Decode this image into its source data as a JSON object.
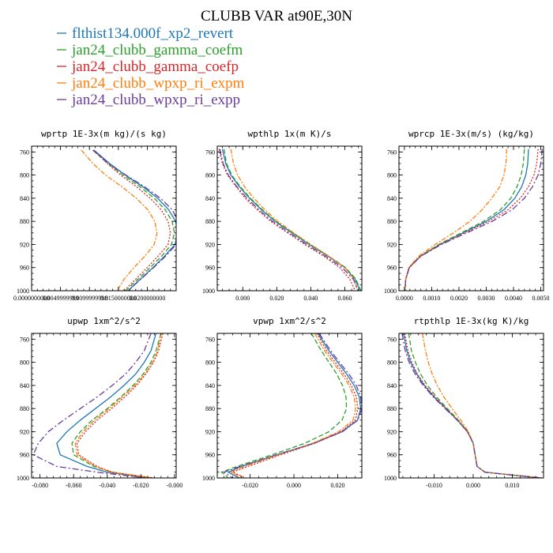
{
  "figure": {
    "title": "CLUBB VAR at90E,30N"
  },
  "legend": [
    {
      "label": "flthist134.000f_xp2_revert",
      "color": "#1f77b4",
      "dash": ""
    },
    {
      "label": "jan24_clubb_gamma_coefm",
      "color": "#2ca02c",
      "dash": "6,3"
    },
    {
      "label": "jan24_clubb_gamma_coefp",
      "color": "#d62728",
      "dash": "2,2"
    },
    {
      "label": "jan24_clubb_wpxp_ri_expm",
      "color": "#ff7f0e",
      "dash": "6,2,2,2"
    },
    {
      "label": "jan24_clubb_wpxp_ri_expp",
      "color": "#6a3d9a",
      "dash": "8,3,2,3"
    }
  ],
  "chart_data": [
    {
      "type": "line",
      "title": "wprtp  1E-3x(m kg)/(s kg)",
      "xlim": [
        0.0,
        0.025
      ],
      "ylim": [
        1000,
        750
      ],
      "xticks": [
        0.0,
        0.005,
        0.01,
        0.015,
        0.02
      ],
      "xtick_labels": [
        "0.0000000000",
        "0.0049999999",
        "0.0099999998",
        "0.0150000000",
        "0.0200000000"
      ],
      "yticks": [
        760,
        800,
        840,
        880,
        920,
        960,
        1000
      ],
      "ytick_labels": [
        "760",
        "800",
        "840",
        "880",
        "920",
        "960",
        "1000"
      ],
      "y": [
        757,
        780,
        800,
        820,
        840,
        860,
        880,
        900,
        920,
        940,
        960,
        980,
        1000
      ],
      "series": [
        {
          "name": "flthist134.000f_xp2_revert",
          "values": [
            0.0108,
            0.0135,
            0.0162,
            0.0192,
            0.0218,
            0.0237,
            0.0249,
            0.0253,
            0.0248,
            0.023,
            0.021,
            0.0188,
            0.0167
          ]
        },
        {
          "name": "jan24_clubb_gamma_coefm",
          "values": [
            0.0106,
            0.0132,
            0.0158,
            0.0187,
            0.0212,
            0.0231,
            0.0243,
            0.0247,
            0.0242,
            0.0225,
            0.0205,
            0.0184,
            0.0163
          ]
        },
        {
          "name": "jan24_clubb_gamma_coefp",
          "values": [
            0.0107,
            0.0131,
            0.0154,
            0.0181,
            0.0205,
            0.0224,
            0.0236,
            0.024,
            0.0236,
            0.0219,
            0.02,
            0.018,
            0.016
          ]
        },
        {
          "name": "jan24_clubb_wpxp_ri_expm",
          "values": [
            0.0086,
            0.0106,
            0.0128,
            0.0156,
            0.0181,
            0.0201,
            0.0213,
            0.0217,
            0.0212,
            0.0196,
            0.0177,
            0.016,
            0.0148
          ]
        },
        {
          "name": "jan24_clubb_wpxp_ri_expp",
          "values": [
            0.0106,
            0.0133,
            0.0163,
            0.0195,
            0.0223,
            0.0243,
            0.0254,
            0.0256,
            0.025,
            0.0232,
            0.0211,
            0.0189,
            0.0167
          ]
        }
      ]
    },
    {
      "type": "line",
      "title": "wpthlp  1x(m K)/s",
      "xlim": [
        -0.015,
        0.07
      ],
      "ylim": [
        1000,
        750
      ],
      "xticks": [
        0.0,
        0.02,
        0.04,
        0.06
      ],
      "xtick_labels": [
        "0.000",
        "0.020",
        "0.040",
        "0.060"
      ],
      "yticks": [
        760,
        800,
        840,
        880,
        920,
        960,
        1000
      ],
      "ytick_labels": [
        "760",
        "800",
        "840",
        "880",
        "920",
        "960",
        "1000"
      ],
      "y": [
        755,
        780,
        800,
        820,
        840,
        860,
        880,
        900,
        920,
        940,
        960,
        980,
        1000
      ],
      "series": [
        {
          "name": "flthist134.000f_xp2_revert",
          "values": [
            -0.012,
            -0.01,
            -0.007,
            -0.002,
            0.004,
            0.011,
            0.019,
            0.029,
            0.039,
            0.05,
            0.06,
            0.066,
            0.069
          ]
        },
        {
          "name": "jan24_clubb_gamma_coefm",
          "values": [
            -0.011,
            -0.0095,
            -0.0065,
            -0.0015,
            0.0045,
            0.0115,
            0.0195,
            0.0295,
            0.0395,
            0.0505,
            0.0605,
            0.0665,
            0.0695
          ]
        },
        {
          "name": "jan24_clubb_gamma_coefp",
          "values": [
            -0.014,
            -0.012,
            -0.009,
            -0.004,
            0.0015,
            0.0085,
            0.0165,
            0.0265,
            0.0365,
            0.0475,
            0.057,
            0.063,
            0.066
          ]
        },
        {
          "name": "jan24_clubb_wpxp_ri_expm",
          "values": [
            -0.007,
            -0.0055,
            -0.003,
            0.001,
            0.0065,
            0.013,
            0.0205,
            0.03,
            0.04,
            0.0505,
            0.06,
            0.0655,
            0.0675
          ]
        },
        {
          "name": "jan24_clubb_wpxp_ri_expp",
          "values": [
            -0.0135,
            -0.0115,
            -0.0085,
            -0.0035,
            0.0025,
            0.0095,
            0.0175,
            0.0275,
            0.0375,
            0.0485,
            0.0585,
            0.065,
            0.068
          ]
        }
      ]
    },
    {
      "type": "line",
      "title": "wprcp  1E-3x(m/s) (kg/kg)",
      "xlim": [
        -0.0002,
        0.0051
      ],
      "ylim": [
        1000,
        750
      ],
      "xticks": [
        0.0,
        0.001,
        0.002,
        0.003,
        0.004,
        0.005
      ],
      "xtick_labels": [
        "0.0000",
        "0.0010",
        "0.0020",
        "0.0030",
        "0.0040",
        "0.0050"
      ],
      "yticks": [
        760,
        800,
        840,
        880,
        920,
        960,
        1000
      ],
      "ytick_labels": [
        "760",
        "800",
        "840",
        "880",
        "920",
        "960",
        "1000"
      ],
      "y": [
        755,
        780,
        800,
        820,
        840,
        860,
        880,
        900,
        920,
        940,
        960,
        980,
        1000
      ],
      "series": [
        {
          "name": "flthist134.000f_xp2_revert",
          "values": [
            0.00455,
            0.00452,
            0.00445,
            0.0043,
            0.00405,
            0.00365,
            0.003,
            0.00215,
            0.0013,
            0.0006,
            0.00018,
            5e-05,
            2e-05
          ]
        },
        {
          "name": "jan24_clubb_gamma_coefm",
          "values": [
            0.0044,
            0.00436,
            0.00428,
            0.00413,
            0.0039,
            0.00352,
            0.0029,
            0.00208,
            0.00126,
            0.00058,
            0.00017,
            5e-05,
            2e-05
          ]
        },
        {
          "name": "jan24_clubb_gamma_coefp",
          "values": [
            0.0049,
            0.00485,
            0.00475,
            0.00455,
            0.00425,
            0.0038,
            0.0031,
            0.0022,
            0.00132,
            0.0006,
            0.00018,
            5e-05,
            2e-05
          ]
        },
        {
          "name": "jan24_clubb_wpxp_ri_expm",
          "values": [
            0.00375,
            0.00372,
            0.00365,
            0.0035,
            0.0032,
            0.00285,
            0.0024,
            0.0018,
            0.00113,
            0.00053,
            0.00016,
            5e-05,
            2e-05
          ]
        },
        {
          "name": "jan24_clubb_wpxp_ri_expp",
          "values": [
            0.00505,
            0.005,
            0.0049,
            0.0047,
            0.0044,
            0.00395,
            0.00322,
            0.00228,
            0.00136,
            0.00061,
            0.00018,
            5e-05,
            2e-05
          ]
        }
      ]
    },
    {
      "type": "line",
      "title": "upwp  1xm^2/s^2",
      "xlim": [
        -0.085,
        0.001
      ],
      "ylim": [
        1000,
        750
      ],
      "xticks": [
        -0.08,
        -0.06,
        -0.04,
        -0.02,
        0.0
      ],
      "xtick_labels": [
        "-0.080",
        "-0.060",
        "-0.040",
        "-0.020",
        "-0.000"
      ],
      "yticks": [
        760,
        800,
        840,
        880,
        920,
        960,
        1000
      ],
      "ytick_labels": [
        "760",
        "800",
        "840",
        "880",
        "920",
        "960",
        "1000"
      ],
      "y": [
        750,
        780,
        800,
        820,
        840,
        860,
        880,
        900,
        920,
        940,
        960,
        980,
        990,
        1000
      ],
      "series": [
        {
          "name": "flthist134.000f_xp2_revert",
          "values": [
            -0.011,
            -0.014,
            -0.018,
            -0.023,
            -0.03,
            -0.038,
            -0.047,
            -0.056,
            -0.064,
            -0.07,
            -0.068,
            -0.052,
            -0.04,
            -0.015
          ]
        },
        {
          "name": "jan24_clubb_gamma_coefm",
          "values": [
            -0.008,
            -0.011,
            -0.014,
            -0.0185,
            -0.0245,
            -0.032,
            -0.04,
            -0.049,
            -0.056,
            -0.061,
            -0.06,
            -0.048,
            -0.037,
            -0.014
          ]
        },
        {
          "name": "jan24_clubb_gamma_coefp",
          "values": [
            -0.007,
            -0.0095,
            -0.0125,
            -0.017,
            -0.0225,
            -0.0295,
            -0.0375,
            -0.046,
            -0.053,
            -0.058,
            -0.057,
            -0.046,
            -0.037,
            -0.012
          ]
        },
        {
          "name": "jan24_clubb_wpxp_ri_expm",
          "values": [
            -0.008,
            -0.01,
            -0.013,
            -0.0175,
            -0.0235,
            -0.031,
            -0.039,
            -0.0475,
            -0.0545,
            -0.059,
            -0.058,
            -0.047,
            -0.038,
            -0.013
          ]
        },
        {
          "name": "jan24_clubb_wpxp_ri_expp",
          "values": [
            -0.014,
            -0.018,
            -0.023,
            -0.029,
            -0.037,
            -0.046,
            -0.056,
            -0.066,
            -0.075,
            -0.081,
            -0.084,
            -0.07,
            -0.046,
            -0.017
          ]
        }
      ]
    },
    {
      "type": "line",
      "title": "vpwp  1xm^2/s^2",
      "xlim": [
        -0.035,
        0.031
      ],
      "ylim": [
        1000,
        750
      ],
      "xticks": [
        -0.02,
        0.0,
        0.02
      ],
      "xtick_labels": [
        "-0.020",
        "0.000",
        "0.020"
      ],
      "yticks": [
        760,
        800,
        840,
        880,
        920,
        960,
        1000
      ],
      "ytick_labels": [
        "760",
        "800",
        "840",
        "880",
        "920",
        "960",
        "1000"
      ],
      "y": [
        750,
        780,
        800,
        820,
        840,
        860,
        880,
        900,
        920,
        940,
        960,
        980,
        990,
        1000
      ],
      "series": [
        {
          "name": "flthist134.000f_xp2_revert",
          "values": [
            0.011,
            0.016,
            0.02,
            0.024,
            0.0275,
            0.0298,
            0.0305,
            0.029,
            0.022,
            0.009,
            -0.008,
            -0.024,
            -0.03,
            -0.025
          ]
        },
        {
          "name": "jan24_clubb_gamma_coefm",
          "values": [
            0.008,
            0.0125,
            0.016,
            0.0195,
            0.0222,
            0.0238,
            0.024,
            0.022,
            0.016,
            0.005,
            -0.01,
            -0.026,
            -0.033,
            -0.03
          ]
        },
        {
          "name": "jan24_clubb_gamma_coefp",
          "values": [
            0.0105,
            0.015,
            0.0188,
            0.0228,
            0.0262,
            0.0285,
            0.0292,
            0.028,
            0.0215,
            0.0095,
            -0.006,
            -0.021,
            -0.028,
            -0.022
          ]
        },
        {
          "name": "jan24_clubb_wpxp_ri_expm",
          "values": [
            0.0095,
            0.014,
            0.0178,
            0.0218,
            0.0252,
            0.0275,
            0.0282,
            0.027,
            0.0205,
            0.0085,
            -0.007,
            -0.0225,
            -0.029,
            -0.023
          ]
        },
        {
          "name": "jan24_clubb_wpxp_ri_expp",
          "values": [
            0.0115,
            0.0168,
            0.0208,
            0.025,
            0.0285,
            0.0305,
            0.031,
            0.0292,
            0.0222,
            0.0093,
            -0.008,
            -0.0245,
            -0.032,
            -0.028
          ]
        }
      ]
    },
    {
      "type": "line",
      "title": "rtpthlp  1E-3x(kg K)/kg",
      "xlim": [
        -0.019,
        0.018
      ],
      "ylim": [
        1000,
        750
      ],
      "xticks": [
        -0.01,
        0.0,
        0.01
      ],
      "xtick_labels": [
        "-0.010",
        "0.000",
        "0.010"
      ],
      "yticks": [
        760,
        800,
        840,
        880,
        920,
        960,
        1000
      ],
      "ytick_labels": [
        "760",
        "800",
        "840",
        "880",
        "920",
        "960",
        "1000"
      ],
      "y": [
        750,
        780,
        800,
        820,
        840,
        860,
        880,
        900,
        920,
        940,
        960,
        980,
        990,
        995,
        1000
      ],
      "series": [
        {
          "name": "flthist134.000f_xp2_revert",
          "values": [
            -0.0178,
            -0.017,
            -0.016,
            -0.0145,
            -0.0125,
            -0.01,
            -0.007,
            -0.004,
            -0.0015,
            0.0,
            0.0005,
            0.001,
            0.003,
            0.01,
            0.0175
          ]
        },
        {
          "name": "jan24_clubb_gamma_coefm",
          "values": [
            -0.0165,
            -0.0158,
            -0.0148,
            -0.0135,
            -0.0117,
            -0.0094,
            -0.0066,
            -0.0038,
            -0.0014,
            0.0,
            0.0005,
            0.001,
            0.003,
            0.01,
            0.0175
          ]
        },
        {
          "name": "jan24_clubb_gamma_coefp",
          "values": [
            -0.0175,
            -0.0167,
            -0.0157,
            -0.0143,
            -0.0123,
            -0.0098,
            -0.0069,
            -0.004,
            -0.0015,
            0.0,
            0.0005,
            0.001,
            0.003,
            0.01,
            0.0175
          ]
        },
        {
          "name": "jan24_clubb_wpxp_ri_expm",
          "values": [
            -0.013,
            -0.0122,
            -0.0115,
            -0.0105,
            -0.0092,
            -0.0075,
            -0.0054,
            -0.0032,
            -0.0012,
            0.0,
            0.0005,
            0.001,
            0.003,
            0.01,
            0.0175
          ]
        },
        {
          "name": "jan24_clubb_wpxp_ri_expp",
          "values": [
            -0.0182,
            -0.0174,
            -0.0164,
            -0.0149,
            -0.0128,
            -0.0102,
            -0.0072,
            -0.0041,
            -0.0015,
            0.0,
            0.0005,
            0.001,
            0.003,
            0.01,
            0.0175
          ]
        }
      ]
    }
  ]
}
